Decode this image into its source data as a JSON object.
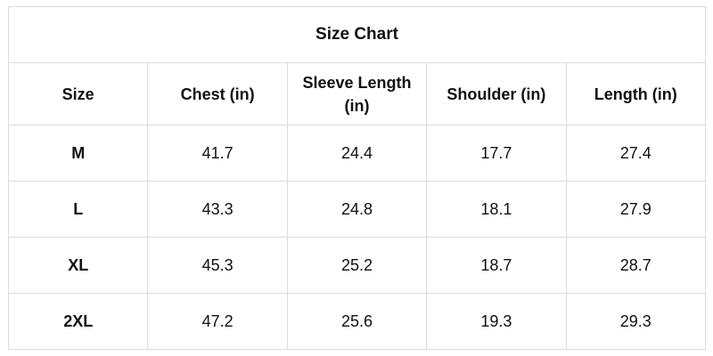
{
  "title": "Size Chart",
  "table": {
    "header": [
      "Size",
      "Chest (in)",
      "Sleeve Length (in)",
      "Shoulder (in)",
      "Length (in)"
    ],
    "rows": [
      [
        "M",
        "41.7",
        "24.4",
        "17.7",
        "27.4"
      ],
      [
        "L",
        "43.3",
        "24.8",
        "18.1",
        "27.9"
      ],
      [
        "XL",
        "45.3",
        "25.2",
        "18.7",
        "28.7"
      ],
      [
        "2XL",
        "47.2",
        "25.6",
        "19.3",
        "29.3"
      ]
    ]
  }
}
